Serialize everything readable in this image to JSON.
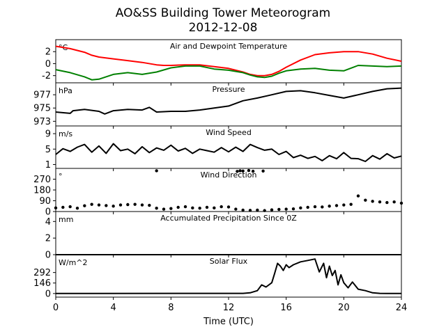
{
  "title": {
    "line1": "AO&SS Building Tower Meteorogram",
    "line2": "2012-12-08"
  },
  "xlabel": "Time (UTC)",
  "x_axis": {
    "lim": [
      0,
      24
    ],
    "ticks": [
      0,
      4,
      8,
      12,
      16,
      20,
      24
    ]
  },
  "colors": {
    "temperature": "#ff0000",
    "dewpoint": "#008000",
    "default": "#000000"
  },
  "chart_data": [
    {
      "type": "line",
      "title": "Air and Dewpoint Temperature",
      "unit": "°C",
      "ylim": [
        -3.2,
        4
      ],
      "yticks": [
        -2,
        0,
        2
      ],
      "series": [
        {
          "key": "temperature",
          "color": "#ff0000",
          "x": [
            0,
            1,
            2,
            2.5,
            3,
            4,
            5,
            6,
            7,
            7.5,
            8,
            9,
            10,
            11,
            12,
            13,
            13.5,
            14,
            14.5,
            15,
            15.5,
            16,
            17,
            18,
            19,
            20,
            21,
            22,
            23,
            24
          ],
          "y": [
            2.9,
            2.5,
            1.9,
            1.4,
            1.1,
            0.8,
            0.5,
            0.2,
            -0.2,
            -0.3,
            -0.3,
            -0.2,
            -0.2,
            -0.5,
            -0.8,
            -1.4,
            -1.8,
            -2.0,
            -2.0,
            -1.8,
            -1.3,
            -0.6,
            0.6,
            1.5,
            1.8,
            2.0,
            2.0,
            1.6,
            0.9,
            0.4
          ]
        },
        {
          "key": "dewpoint",
          "color": "#008000",
          "x": [
            0,
            1,
            2,
            2.5,
            3,
            4,
            5,
            6,
            7,
            8,
            9,
            10,
            11,
            12,
            13,
            13.5,
            14,
            14.5,
            15,
            15.5,
            16,
            17,
            18,
            19,
            20,
            21,
            22,
            23,
            24
          ],
          "y": [
            -1.0,
            -1.5,
            -2.2,
            -2.7,
            -2.6,
            -1.8,
            -1.5,
            -1.8,
            -1.4,
            -0.7,
            -0.4,
            -0.4,
            -0.9,
            -1.1,
            -1.5,
            -1.9,
            -2.2,
            -2.3,
            -2.1,
            -1.6,
            -1.2,
            -0.9,
            -0.8,
            -1.1,
            -1.2,
            -0.3,
            -0.4,
            -0.5,
            -0.4
          ]
        }
      ]
    },
    {
      "type": "line",
      "title": "Pressure",
      "unit": "hPa",
      "ylim": [
        972.3,
        978.8
      ],
      "yticks": [
        973,
        975,
        977
      ],
      "series": [
        {
          "key": "pressure",
          "color": "#000000",
          "x": [
            0,
            1,
            1.2,
            2,
            3,
            3.4,
            4,
            5,
            6,
            6.5,
            7,
            8,
            9,
            10,
            11,
            12,
            13,
            14,
            15,
            16,
            17,
            18,
            19,
            20,
            21,
            22,
            23,
            24
          ],
          "y": [
            974.4,
            974.2,
            974.6,
            974.8,
            974.5,
            974.1,
            974.6,
            974.8,
            974.7,
            975.1,
            974.4,
            974.5,
            974.5,
            974.7,
            975.0,
            975.3,
            976.1,
            976.5,
            977.0,
            977.5,
            977.6,
            977.3,
            976.9,
            976.5,
            977.0,
            977.5,
            977.9,
            978.0
          ]
        }
      ]
    },
    {
      "type": "line",
      "title": "Wind Speed",
      "unit": "m/s",
      "ylim": [
        0,
        11
      ],
      "yticks": [
        1,
        5,
        9
      ],
      "series": [
        {
          "key": "wind_speed",
          "color": "#000000",
          "x": [
            0,
            0.5,
            1,
            1.5,
            2,
            2.5,
            3,
            3.5,
            4,
            4.5,
            5,
            5.5,
            6,
            6.5,
            7,
            7.5,
            8,
            8.5,
            9,
            9.5,
            10,
            10.5,
            11,
            11.5,
            12,
            12.5,
            13,
            13.5,
            14,
            14.5,
            15,
            15.5,
            16,
            16.5,
            17,
            17.5,
            18,
            18.5,
            19,
            19.5,
            20,
            20.5,
            21,
            21.5,
            22,
            22.5,
            23,
            23.5,
            24
          ],
          "y": [
            3.6,
            5.1,
            4.4,
            5.5,
            6.2,
            4.2,
            5.8,
            3.9,
            6.4,
            4.6,
            5.0,
            3.8,
            5.6,
            4.1,
            5.3,
            4.7,
            6.0,
            4.5,
            5.2,
            3.9,
            5.0,
            4.6,
            4.2,
            5.4,
            4.3,
            5.5,
            4.4,
            6.2,
            5.4,
            4.7,
            5.0,
            3.6,
            4.4,
            2.8,
            3.4,
            2.6,
            3.1,
            2.0,
            3.3,
            2.5,
            4.1,
            2.6,
            2.5,
            1.8,
            3.3,
            2.4,
            3.8,
            2.7,
            3.2
          ]
        }
      ]
    },
    {
      "type": "scatter",
      "title": "Wind Direction",
      "unit": "°",
      "ylim": [
        0,
        360
      ],
      "yticks": [
        0,
        90,
        180,
        270
      ],
      "series": [
        {
          "key": "wind_direction",
          "color": "#000000",
          "x": [
            0,
            0.5,
            1,
            1.5,
            2,
            2.5,
            3,
            3.5,
            4,
            4.5,
            5,
            5.5,
            6,
            6.5,
            7,
            7.5,
            8,
            8.5,
            9,
            9.5,
            10,
            10.5,
            11,
            11.5,
            12,
            12.5,
            13,
            13.5,
            14,
            14.5,
            15,
            15.5,
            16,
            16.5,
            17,
            17.5,
            18,
            18.5,
            19,
            19.5,
            20,
            20.5,
            21,
            21.5,
            22,
            22.5,
            23,
            23.5,
            24,
            7.0,
            12.6,
            12.8,
            13.0,
            13.4,
            13.7,
            14.4
          ],
          "y": [
            30,
            35,
            40,
            28,
            48,
            60,
            55,
            50,
            45,
            55,
            58,
            60,
            55,
            52,
            28,
            20,
            25,
            35,
            40,
            30,
            28,
            35,
            30,
            40,
            38,
            20,
            12,
            10,
            12,
            8,
            14,
            18,
            20,
            22,
            30,
            35,
            40,
            38,
            45,
            50,
            55,
            60,
            130,
            95,
            85,
            80,
            75,
            80,
            70,
            340,
            335,
            340,
            338,
            342,
            336,
            338
          ]
        }
      ]
    },
    {
      "type": "line",
      "title": "Accumulated Precipitation Since 0Z",
      "unit": "mm",
      "ylim": [
        0,
        5.2
      ],
      "yticks": [
        0,
        2,
        4
      ],
      "series": [
        {
          "key": "precip",
          "color": "#000000",
          "x": [
            0,
            24
          ],
          "y": [
            0,
            0
          ]
        }
      ]
    },
    {
      "type": "line",
      "title": "Solar Flux",
      "unit": "W/m^2",
      "ylim": [
        -50,
        540
      ],
      "yticks": [
        0,
        146,
        292
      ],
      "series": [
        {
          "key": "solar_flux",
          "color": "#000000",
          "x": [
            0,
            13,
            13.5,
            14,
            14.3,
            14.6,
            15,
            15.2,
            15.4,
            15.6,
            15.8,
            16,
            16.2,
            16.5,
            17,
            17.5,
            18,
            18.3,
            18.6,
            18.8,
            19,
            19.2,
            19.4,
            19.6,
            19.8,
            20,
            20.3,
            20.6,
            21,
            21.5,
            22,
            22.5,
            23,
            24
          ],
          "y": [
            0,
            2,
            10,
            40,
            120,
            90,
            150,
            280,
            420,
            380,
            320,
            400,
            360,
            400,
            440,
            460,
            480,
            300,
            420,
            220,
            380,
            250,
            320,
            120,
            260,
            150,
            80,
            160,
            60,
            40,
            10,
            2,
            0,
            0
          ]
        }
      ]
    }
  ]
}
